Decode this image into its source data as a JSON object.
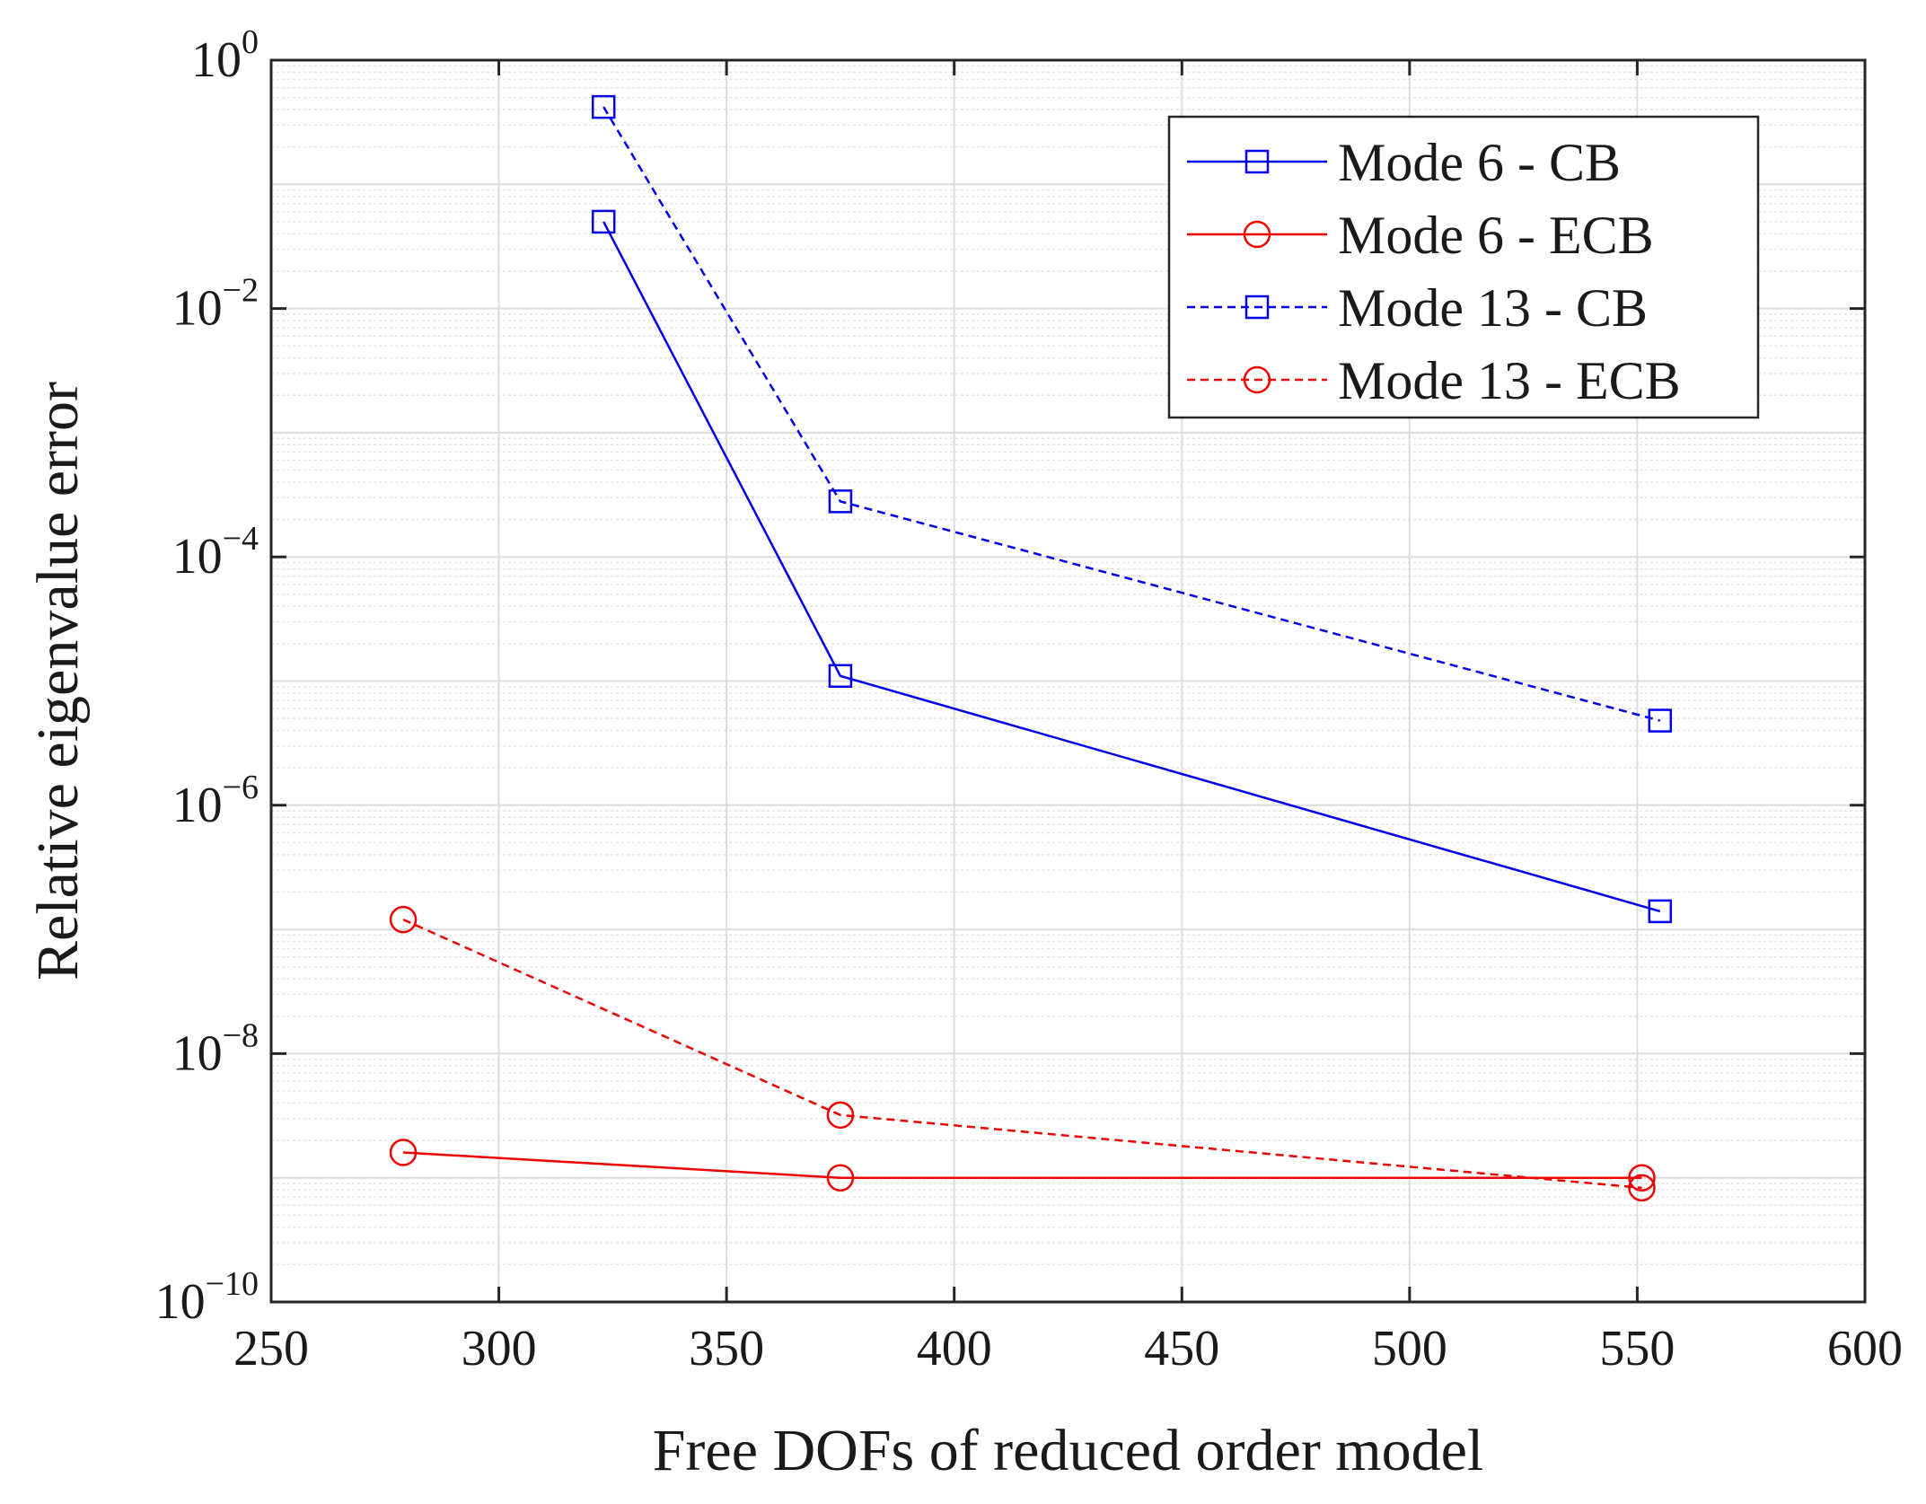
{
  "chart_data": {
    "type": "line",
    "xlabel": "Free DOFs of reduced order model",
    "ylabel": "Relative eigenvalue error",
    "xlim": [
      250,
      600
    ],
    "ylim": [
      1e-10,
      1
    ],
    "yscale": "log",
    "grid": true,
    "minor_grid": true,
    "legend_position": "top-right",
    "x_ticks": [
      "250",
      "300",
      "350",
      "400",
      "450",
      "500",
      "550",
      "600"
    ],
    "y_ticks": [
      {
        "base": "10",
        "exp": "0",
        "value": 1
      },
      {
        "base": "10",
        "exp": "−2",
        "value": 0.01
      },
      {
        "base": "10",
        "exp": "−4",
        "value": 0.0001
      },
      {
        "base": "10",
        "exp": "−6",
        "value": 1e-06
      },
      {
        "base": "10",
        "exp": "−8",
        "value": 1e-08
      },
      {
        "base": "10",
        "exp": "−10",
        "value": 1e-10
      }
    ],
    "series": [
      {
        "name": "Mode 6 - CB",
        "color": "#0000ee",
        "line_style": "solid",
        "marker": "square",
        "x": [
          323,
          375,
          555
        ],
        "y": [
          0.05,
          1.1e-05,
          1.4e-07
        ]
      },
      {
        "name": "Mode 6 - ECB",
        "color": "#ee0000",
        "line_style": "solid",
        "marker": "circle",
        "x": [
          279,
          375,
          551
        ],
        "y": [
          1.6e-09,
          1e-09,
          1e-09
        ]
      },
      {
        "name": "Mode 13 - CB",
        "color": "#0000ee",
        "line_style": "dashed",
        "marker": "square",
        "x": [
          323,
          375,
          555
        ],
        "y": [
          0.42,
          0.00028,
          4.8e-06
        ]
      },
      {
        "name": "Mode 13 - ECB",
        "color": "#ee0000",
        "line_style": "dashed",
        "marker": "circle",
        "x": [
          279,
          375,
          551
        ],
        "y": [
          1.2e-07,
          3.2e-09,
          8.3e-10
        ]
      }
    ]
  }
}
